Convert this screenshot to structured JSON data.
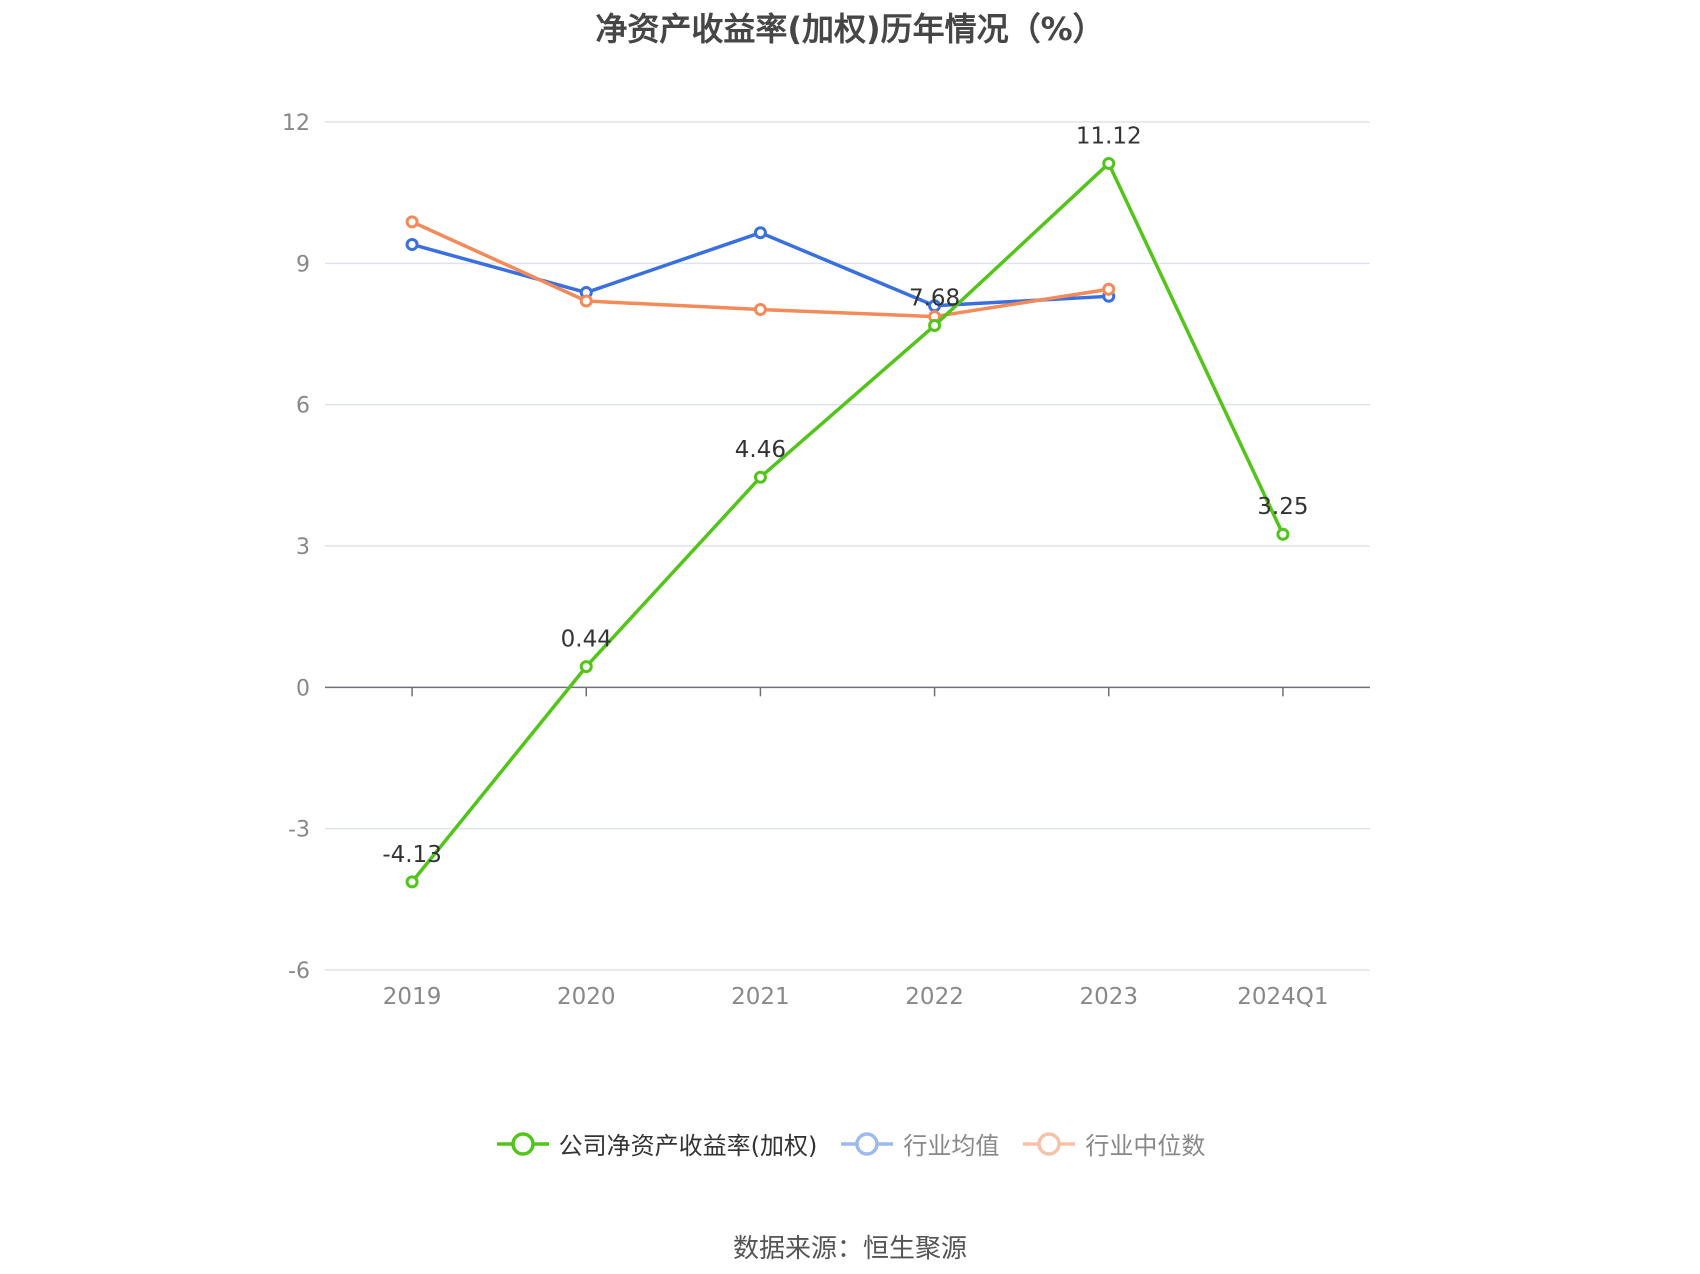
{
  "chart_data": {
    "type": "line",
    "title": "净资产收益率(加权)历年情况（%）",
    "categories": [
      "2019",
      "2020",
      "2021",
      "2022",
      "2023",
      "2024Q1"
    ],
    "ylim": [
      -6,
      12
    ],
    "yticks": [
      "-6",
      "-3",
      "0",
      "3",
      "6",
      "9",
      "12"
    ],
    "grid": true,
    "legend_position": "bottom",
    "series": [
      {
        "name": "公司净资产收益率(加权)",
        "color": "#52c41a",
        "values": [
          -4.13,
          0.44,
          4.46,
          7.68,
          11.12,
          3.25
        ],
        "labels": [
          "-4.13",
          "0.44",
          "4.46",
          "7.68",
          "11.12",
          "3.25"
        ],
        "active": true
      },
      {
        "name": "行业均值",
        "color": "#3a6fdf",
        "legend_color": "#9db9ee",
        "values": [
          9.4,
          8.38,
          9.65,
          8.1,
          8.3,
          null
        ],
        "active": false
      },
      {
        "name": "行业中位数",
        "color": "#f28a5a",
        "legend_color": "#f8c2a8",
        "values": [
          9.88,
          8.2,
          8.02,
          7.87,
          8.45,
          null
        ],
        "active": false
      }
    ]
  },
  "source": "数据来源：恒生聚源"
}
